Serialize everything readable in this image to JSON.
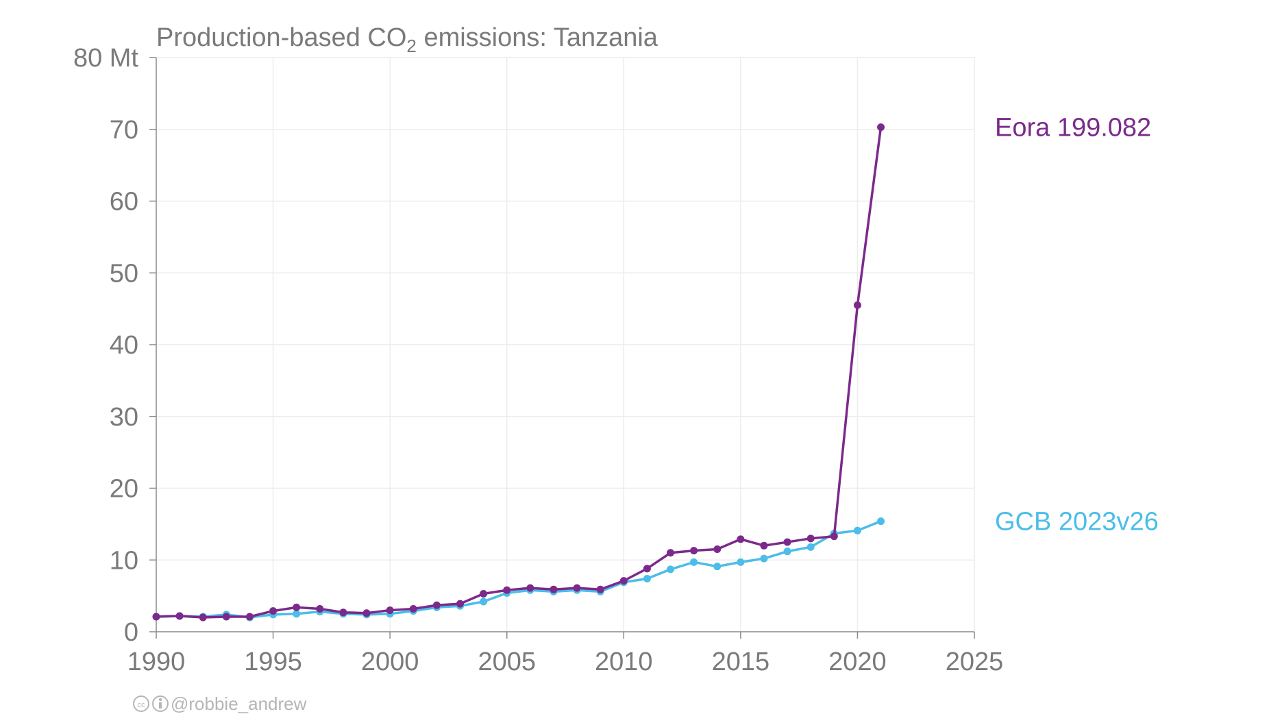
{
  "title": {
    "prefix": "Production-based CO",
    "subscript": "2",
    "suffix": " emissions: Tanzania"
  },
  "credit": "@robbie_andrew",
  "chart_data": {
    "type": "line",
    "title": "Production-based CO2 emissions: Tanzania",
    "unit": "Mt",
    "xlim": [
      1990,
      2025
    ],
    "ylim": [
      0,
      80
    ],
    "x_ticks": [
      1990,
      1995,
      2000,
      2005,
      2010,
      2015,
      2020,
      2025
    ],
    "y_ticks": [
      0,
      10,
      20,
      30,
      40,
      50,
      60,
      70,
      80
    ],
    "y_tick_labels": [
      "0",
      "10",
      "20",
      "30",
      "40",
      "50",
      "60",
      "70",
      "80 Mt"
    ],
    "grid": true,
    "legend": "direct labels at line ends (right)",
    "series": [
      {
        "name": "Eora 199.082",
        "color": "#7b2a8c",
        "x": [
          1990,
          1991,
          1992,
          1993,
          1994,
          1995,
          1996,
          1997,
          1998,
          1999,
          2000,
          2001,
          2002,
          2003,
          2004,
          2005,
          2006,
          2007,
          2008,
          2009,
          2010,
          2011,
          2012,
          2013,
          2014,
          2015,
          2016,
          2017,
          2018,
          2019,
          2020,
          2021
        ],
        "values": [
          2.1,
          2.2,
          2.0,
          2.1,
          2.1,
          2.9,
          3.4,
          3.2,
          2.7,
          2.6,
          3.0,
          3.2,
          3.7,
          3.9,
          5.3,
          5.8,
          6.1,
          5.9,
          6.1,
          5.9,
          7.1,
          8.8,
          11.0,
          11.3,
          11.5,
          12.9,
          12.0,
          12.5,
          13.0,
          13.3,
          45.5,
          70.3
        ]
      },
      {
        "name": "GCB 2023v26",
        "color": "#4bbde8",
        "x": [
          1990,
          1991,
          1992,
          1993,
          1994,
          1995,
          1996,
          1997,
          1998,
          1999,
          2000,
          2001,
          2002,
          2003,
          2004,
          2005,
          2006,
          2007,
          2008,
          2009,
          2010,
          2011,
          2012,
          2013,
          2014,
          2015,
          2016,
          2017,
          2018,
          2019,
          2020,
          2021
        ],
        "values": [
          2.1,
          2.2,
          2.1,
          2.4,
          2.0,
          2.4,
          2.5,
          2.8,
          2.5,
          2.4,
          2.5,
          2.9,
          3.4,
          3.6,
          4.2,
          5.4,
          5.8,
          5.6,
          5.8,
          5.6,
          6.9,
          7.4,
          8.7,
          9.7,
          9.1,
          9.7,
          10.2,
          11.2,
          11.8,
          13.7,
          14.1,
          15.4
        ]
      }
    ]
  }
}
